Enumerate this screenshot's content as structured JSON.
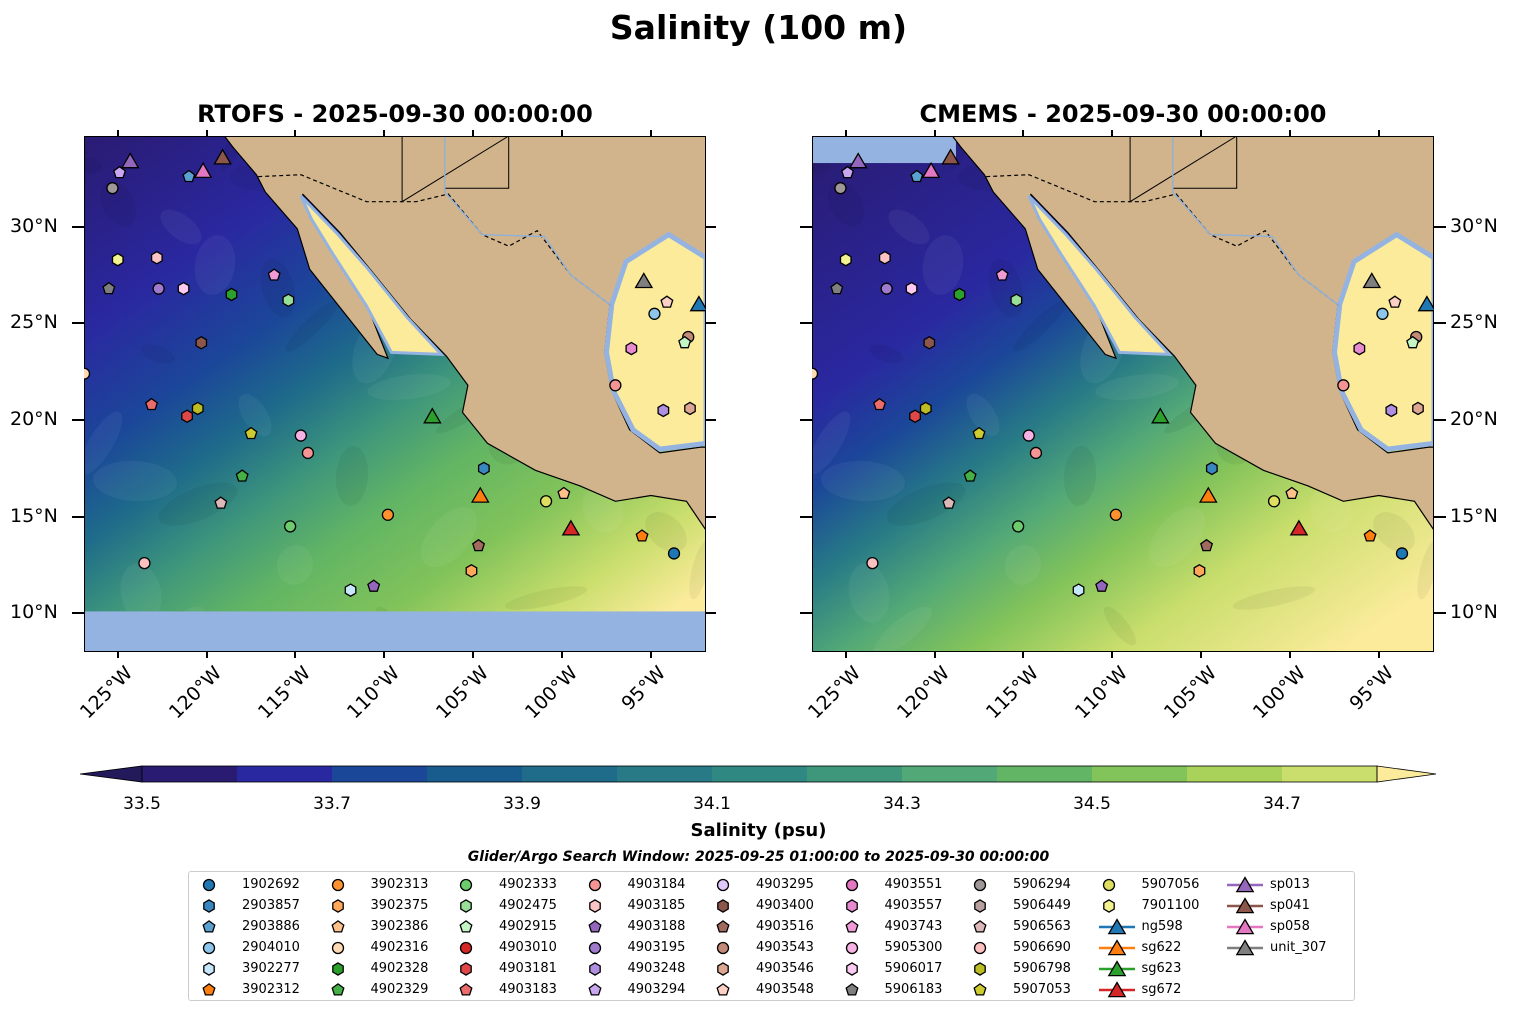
{
  "title": "Salinity (100 m)",
  "panels": [
    {
      "title": "RTOFS - 2025-09-30 00:00:00"
    },
    {
      "title": "CMEMS - 2025-09-30 00:00:00"
    }
  ],
  "axes": {
    "lat_ticks": [
      "30°N",
      "25°N",
      "20°N",
      "15°N",
      "10°N"
    ],
    "lat_values": [
      30,
      25,
      20,
      15,
      10
    ],
    "lon_ticks": [
      "125°W",
      "120°W",
      "115°W",
      "110°W",
      "105°W",
      "100°W",
      "95°W"
    ],
    "lon_values": [
      -125,
      -120,
      -115,
      -110,
      -105,
      -100,
      -95
    ],
    "lon_range": [
      -126.9,
      -91.9
    ],
    "lat_range": [
      8.0,
      34.7
    ]
  },
  "colorbar": {
    "label": "Salinity (psu)",
    "ticks": [
      "33.5",
      "33.7",
      "33.9",
      "34.1",
      "34.3",
      "34.5",
      "34.7"
    ],
    "tick_values": [
      33.5,
      33.7,
      33.9,
      34.1,
      34.3,
      34.5,
      34.7
    ],
    "min": 33.5,
    "max": 34.8,
    "step": 0.1,
    "colors": [
      "#2a1b72",
      "#2a28a0",
      "#1b4799",
      "#185b8d",
      "#1e6c8a",
      "#277a86",
      "#2f8882",
      "#3f977b",
      "#52a877",
      "#62b564",
      "#82c35a",
      "#a8d25a",
      "#c9de6c"
    ],
    "under_color": "#231a5b",
    "over_color": "#fbeb9b"
  },
  "search_window": "Glider/Argo Search Window: 2025-09-25 01:00:00 to 2025-09-30 00:00:00",
  "colors": {
    "land": "#d2b48c",
    "nodata": "#95b3e0",
    "river": "#8fb0d8"
  },
  "legend": [
    {
      "label": "1902692",
      "shape": "circle",
      "color": "#1f77b4"
    },
    {
      "label": "2903857",
      "shape": "hexagon",
      "color": "#3a87c0"
    },
    {
      "label": "2903886",
      "shape": "pentagon",
      "color": "#5aa0d0"
    },
    {
      "label": "2904010",
      "shape": "circle",
      "color": "#8ec6ea"
    },
    {
      "label": "3902277",
      "shape": "hexagon",
      "color": "#c6e6fa"
    },
    {
      "label": "3902312",
      "shape": "pentagon",
      "color": "#ff7f0e"
    },
    {
      "label": "3902313",
      "shape": "circle",
      "color": "#ff922e"
    },
    {
      "label": "3902375",
      "shape": "hexagon",
      "color": "#ffa85a"
    },
    {
      "label": "3902386",
      "shape": "pentagon",
      "color": "#ffc18a"
    },
    {
      "label": "4902316",
      "shape": "circle",
      "color": "#ffdab5"
    },
    {
      "label": "4902328",
      "shape": "hexagon",
      "color": "#2ca02c"
    },
    {
      "label": "4902329",
      "shape": "pentagon",
      "color": "#46b046"
    },
    {
      "label": "4902333",
      "shape": "circle",
      "color": "#6ccc6c"
    },
    {
      "label": "4902475",
      "shape": "hexagon",
      "color": "#98e098"
    },
    {
      "label": "4902915",
      "shape": "pentagon",
      "color": "#c4f5c4"
    },
    {
      "label": "4903010",
      "shape": "circle",
      "color": "#d62728"
    },
    {
      "label": "4903181",
      "shape": "hexagon",
      "color": "#e04848"
    },
    {
      "label": "4903183",
      "shape": "pentagon",
      "color": "#ec6c6c"
    },
    {
      "label": "4903184",
      "shape": "circle",
      "color": "#f49494"
    },
    {
      "label": "4903185",
      "shape": "hexagon",
      "color": "#fcc4c4"
    },
    {
      "label": "4903188",
      "shape": "pentagon",
      "color": "#9467bd"
    },
    {
      "label": "4903195",
      "shape": "circle",
      "color": "#a07acc"
    },
    {
      "label": "4903248",
      "shape": "hexagon",
      "color": "#b08ee0"
    },
    {
      "label": "4903294",
      "shape": "pentagon",
      "color": "#c8a6f0"
    },
    {
      "label": "4903295",
      "shape": "circle",
      "color": "#e0c8fa"
    },
    {
      "label": "4903400",
      "shape": "hexagon",
      "color": "#8c564b"
    },
    {
      "label": "4903516",
      "shape": "pentagon",
      "color": "#a06a5c"
    },
    {
      "label": "4903543",
      "shape": "circle",
      "color": "#c48a78"
    },
    {
      "label": "4903546",
      "shape": "hexagon",
      "color": "#dca692"
    },
    {
      "label": "4903548",
      "shape": "pentagon",
      "color": "#fcd0c4"
    },
    {
      "label": "4903551",
      "shape": "circle",
      "color": "#e377c2"
    },
    {
      "label": "4903557",
      "shape": "hexagon",
      "color": "#e88ad0"
    },
    {
      "label": "4903743",
      "shape": "pentagon",
      "color": "#f09ad8"
    },
    {
      "label": "5905300",
      "shape": "circle",
      "color": "#f7b2e4"
    },
    {
      "label": "5906017",
      "shape": "hexagon",
      "color": "#fccaf0"
    },
    {
      "label": "5906183",
      "shape": "pentagon",
      "color": "#7f7f7f"
    },
    {
      "label": "5906294",
      "shape": "circle",
      "color": "#a09898"
    },
    {
      "label": "5906449",
      "shape": "hexagon",
      "color": "#b8a0a0"
    },
    {
      "label": "5906563",
      "shape": "pentagon",
      "color": "#dcb8b8"
    },
    {
      "label": "5906690",
      "shape": "circle",
      "color": "#fcc0c0"
    },
    {
      "label": "5906798",
      "shape": "hexagon",
      "color": "#bcbd22"
    },
    {
      "label": "5907053",
      "shape": "pentagon",
      "color": "#cccc30"
    },
    {
      "label": "5907056",
      "shape": "circle",
      "color": "#dede60"
    },
    {
      "label": "7901100",
      "shape": "hexagon",
      "color": "#f2f290"
    },
    {
      "label": "ng598",
      "shape": "triangle",
      "color": "#1f77b4"
    },
    {
      "label": "sg622",
      "shape": "triangle",
      "color": "#ff7f0e"
    },
    {
      "label": "sg623",
      "shape": "triangle",
      "color": "#2ca02c"
    },
    {
      "label": "sg672",
      "shape": "triangle",
      "color": "#d62728"
    },
    {
      "label": "sp013",
      "shape": "triangle",
      "color": "#9467bd"
    },
    {
      "label": "sp041",
      "shape": "triangle",
      "color": "#8c564b"
    },
    {
      "label": "sp058",
      "shape": "triangle",
      "color": "#e377c2"
    },
    {
      "label": "unit_307",
      "shape": "triangle",
      "color": "#7f7f7f"
    }
  ],
  "observations": [
    {
      "id": "5906294",
      "lon": -125.3,
      "lat": 32.0
    },
    {
      "id": "4903294",
      "lon": -124.9,
      "lat": 32.8
    },
    {
      "id": "sp013",
      "lon": -124.3,
      "lat": 33.4
    },
    {
      "id": "sp041",
      "lon": -119.1,
      "lat": 33.6
    },
    {
      "id": "sp058",
      "lon": -120.2,
      "lat": 32.9
    },
    {
      "id": "2903886",
      "lon": -121.0,
      "lat": 32.6
    },
    {
      "id": "7901100",
      "lon": -125.0,
      "lat": 28.3
    },
    {
      "id": "4903185",
      "lon": -122.8,
      "lat": 28.4
    },
    {
      "id": "5906183",
      "lon": -125.5,
      "lat": 26.8
    },
    {
      "id": "4903195",
      "lon": -122.7,
      "lat": 26.8
    },
    {
      "id": "5906017",
      "lon": -121.3,
      "lat": 26.8
    },
    {
      "id": "4902328",
      "lon": -118.6,
      "lat": 26.5
    },
    {
      "id": "4903743",
      "lon": -116.2,
      "lat": 27.5
    },
    {
      "id": "4902475",
      "lon": -115.4,
      "lat": 26.2
    },
    {
      "id": "4903400",
      "lon": -120.3,
      "lat": 24.0
    },
    {
      "id": "4902316",
      "lon": -126.9,
      "lat": 22.4
    },
    {
      "id": "4903183",
      "lon": -123.1,
      "lat": 20.8
    },
    {
      "id": "4903181",
      "lon": -121.1,
      "lat": 20.2
    },
    {
      "id": "5906798",
      "lon": -120.5,
      "lat": 20.6
    },
    {
      "id": "5907053",
      "lon": -117.5,
      "lat": 19.3
    },
    {
      "id": "5905300",
      "lon": -114.7,
      "lat": 19.2
    },
    {
      "id": "4903184",
      "lon": -114.3,
      "lat": 18.3
    },
    {
      "id": "sg623",
      "lon": -107.3,
      "lat": 20.2
    },
    {
      "id": "4902329",
      "lon": -118.0,
      "lat": 17.1
    },
    {
      "id": "5906563",
      "lon": -119.2,
      "lat": 15.7
    },
    {
      "id": "4902333",
      "lon": -115.3,
      "lat": 14.5
    },
    {
      "id": "3902313",
      "lon": -109.8,
      "lat": 15.1
    },
    {
      "id": "2903857",
      "lon": -104.4,
      "lat": 17.5
    },
    {
      "id": "sg622",
      "lon": -104.6,
      "lat": 16.1
    },
    {
      "id": "5907056",
      "lon": -100.9,
      "lat": 15.8
    },
    {
      "id": "3902386",
      "lon": -99.9,
      "lat": 16.2
    },
    {
      "id": "sg672",
      "lon": -99.5,
      "lat": 14.4
    },
    {
      "id": "3902312",
      "lon": -95.5,
      "lat": 14.0
    },
    {
      "id": "1902692",
      "lon": -93.7,
      "lat": 13.1
    },
    {
      "id": "4903516",
      "lon": -104.7,
      "lat": 13.5
    },
    {
      "id": "3902375",
      "lon": -105.1,
      "lat": 12.2
    },
    {
      "id": "5906690",
      "lon": -123.5,
      "lat": 12.6
    },
    {
      "id": "3902277",
      "lon": -111.9,
      "lat": 11.2
    },
    {
      "id": "4903188",
      "lon": -110.6,
      "lat": 11.4
    },
    {
      "id": "unit_307",
      "lon": -95.4,
      "lat": 27.2
    },
    {
      "id": "ng598",
      "lon": -92.3,
      "lat": 26.0
    },
    {
      "id": "4903548",
      "lon": -94.1,
      "lat": 26.1
    },
    {
      "id": "2904010",
      "lon": -94.8,
      "lat": 25.5
    },
    {
      "id": "4903543",
      "lon": -92.9,
      "lat": 24.3
    },
    {
      "id": "4902915",
      "lon": -93.1,
      "lat": 24.0
    },
    {
      "id": "4903557",
      "lon": -96.1,
      "lat": 23.7
    },
    {
      "id": "4903184",
      "lon": -97.0,
      "lat": 21.8
    },
    {
      "id": "4903248",
      "lon": -94.3,
      "lat": 20.5
    },
    {
      "id": "4903546",
      "lon": -92.8,
      "lat": 20.6
    }
  ]
}
